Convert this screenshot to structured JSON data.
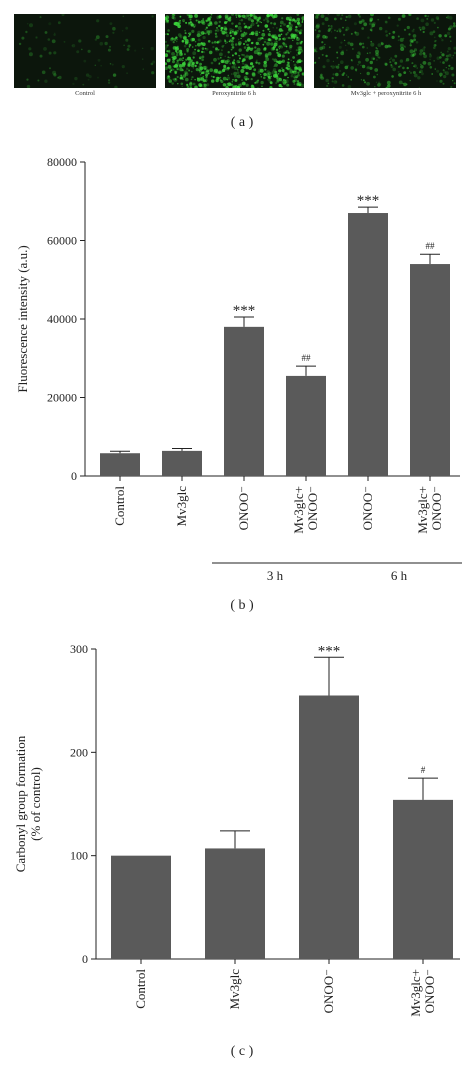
{
  "panel_a": {
    "images": [
      {
        "caption": "Control",
        "intensity": 0.05
      },
      {
        "caption": "Peroxynitrite 6 h",
        "intensity": 0.85
      },
      {
        "caption": "Mv3glc + peroxynitrite 6 h",
        "intensity": 0.35
      }
    ],
    "label": "( a )"
  },
  "panel_b_label": "( b )",
  "panel_c_label": "( c )",
  "colors": {
    "bar": "#5a5a5a",
    "fluor": "#3cd63c",
    "bg_dark": "#0c160c"
  },
  "chart_data": [
    {
      "type": "bar",
      "ylabel": "Fluorescence intensity (a.u.)",
      "ylim": [
        0,
        80000
      ],
      "yticks": [
        "0",
        "20000",
        "40000",
        "60000",
        "80000"
      ],
      "categories": [
        [
          "Control"
        ],
        [
          "Mv3glc"
        ],
        [
          "ONOO⁻"
        ],
        [
          "Mv3glc+",
          "ONOO⁻"
        ],
        [
          "ONOO⁻"
        ],
        [
          "Mv3glc+",
          "ONOO⁻"
        ]
      ],
      "values": [
        5800,
        6400,
        38000,
        25500,
        67000,
        54000
      ],
      "errors": [
        500,
        600,
        2500,
        2500,
        1500,
        2500
      ],
      "significance": [
        "",
        "",
        "***",
        "##",
        "***",
        "##"
      ],
      "groups": [
        {
          "label": "3 h",
          "from": 2,
          "to": 3
        },
        {
          "label": "6 h",
          "from": 4,
          "to": 5
        }
      ]
    },
    {
      "type": "bar",
      "ylabel": [
        "Carbonyl group formation",
        "(% of control)"
      ],
      "ylim": [
        0,
        300
      ],
      "yticks": [
        "0",
        "100",
        "200",
        "300"
      ],
      "categories": [
        [
          "Control"
        ],
        [
          "Mv3glc"
        ],
        [
          "ONOO⁻"
        ],
        [
          "Mv3glc+",
          "ONOO⁻"
        ]
      ],
      "values": [
        100,
        107,
        255,
        154
      ],
      "errors": [
        0,
        17,
        37,
        21
      ],
      "significance": [
        "",
        "",
        "***",
        "#"
      ]
    }
  ]
}
